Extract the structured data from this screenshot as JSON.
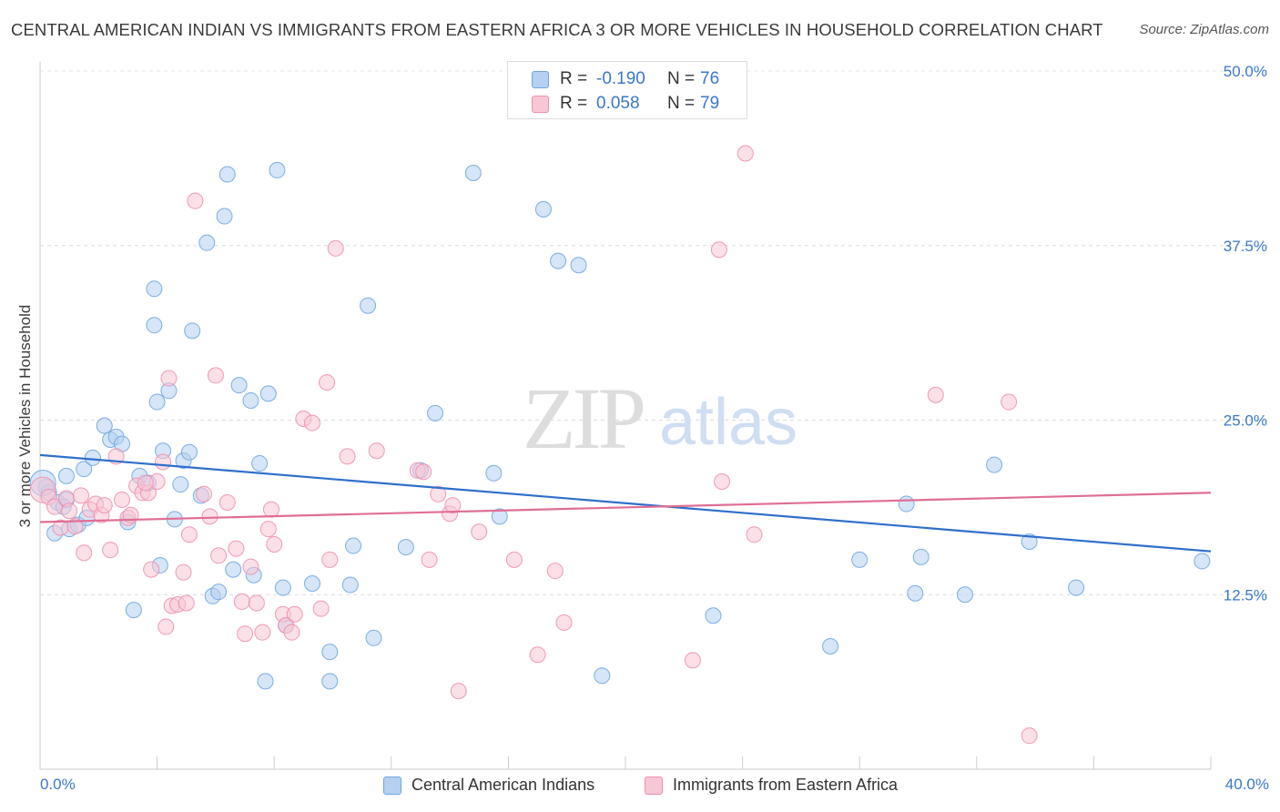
{
  "title": "CENTRAL AMERICAN INDIAN VS IMMIGRANTS FROM EASTERN AFRICA 3 OR MORE VEHICLES IN HOUSEHOLD CORRELATION CHART",
  "source": "Source: ZipAtlas.com",
  "watermark": {
    "zip": "ZIP",
    "atlas": "atlas"
  },
  "legend": {
    "rows": [
      {
        "r_label": "R =",
        "r_value": "-0.190",
        "n_label": "N =",
        "n_value": "76",
        "color": "#a8c8ef"
      },
      {
        "r_label": "R =",
        "r_value": "0.058",
        "n_label": "N =",
        "n_value": "79",
        "color": "#f6b8cb"
      }
    ]
  },
  "chart_data": {
    "type": "scatter",
    "title": "CENTRAL AMERICAN INDIAN VS IMMIGRANTS FROM EASTERN AFRICA 3 OR MORE VEHICLES IN HOUSEHOLD CORRELATION CHART",
    "xlabel": "",
    "ylabel": "3 or more Vehicles in Household",
    "xlim": [
      0,
      40
    ],
    "ylim": [
      0,
      50
    ],
    "x_tick_labels": [
      "0.0%",
      "40.0%"
    ],
    "y_ticks": [
      12.5,
      25.0,
      37.5,
      50.0
    ],
    "y_tick_labels": [
      "12.5%",
      "25.0%",
      "37.5%",
      "50.0%"
    ],
    "grid": true,
    "legend_position": "top-center",
    "series": [
      {
        "name": "Central American Indians",
        "color": "#6fa6e0",
        "fill": "#b5d0f0",
        "trend": [
          [
            0,
            22.5
          ],
          [
            40,
            15.6
          ]
        ],
        "points": [
          [
            0.2,
            20.2
          ],
          [
            0.3,
            19.8
          ],
          [
            0.5,
            16.9
          ],
          [
            0.6,
            19.1
          ],
          [
            0.8,
            18.8
          ],
          [
            0.9,
            21.0
          ],
          [
            0.9,
            19.3
          ],
          [
            1.0,
            17.2
          ],
          [
            1.3,
            17.5
          ],
          [
            1.5,
            21.5
          ],
          [
            1.6,
            18.0
          ],
          [
            1.8,
            22.3
          ],
          [
            2.2,
            24.6
          ],
          [
            2.4,
            23.6
          ],
          [
            2.6,
            23.8
          ],
          [
            2.8,
            23.3
          ],
          [
            3.0,
            17.7
          ],
          [
            3.2,
            11.4
          ],
          [
            3.4,
            21.0
          ],
          [
            3.7,
            20.5
          ],
          [
            3.9,
            34.4
          ],
          [
            3.9,
            31.8
          ],
          [
            4.0,
            26.3
          ],
          [
            4.1,
            14.6
          ],
          [
            4.2,
            22.8
          ],
          [
            4.4,
            27.1
          ],
          [
            4.6,
            17.9
          ],
          [
            4.8,
            20.4
          ],
          [
            4.9,
            22.1
          ],
          [
            5.1,
            22.7
          ],
          [
            5.2,
            31.4
          ],
          [
            5.5,
            19.6
          ],
          [
            5.7,
            37.7
          ],
          [
            5.9,
            12.4
          ],
          [
            6.1,
            12.7
          ],
          [
            6.3,
            39.6
          ],
          [
            6.4,
            42.6
          ],
          [
            6.6,
            14.3
          ],
          [
            6.8,
            27.5
          ],
          [
            7.2,
            26.4
          ],
          [
            7.3,
            13.9
          ],
          [
            7.5,
            21.9
          ],
          [
            7.7,
            6.3
          ],
          [
            7.8,
            26.9
          ],
          [
            8.1,
            42.9
          ],
          [
            8.3,
            13.0
          ],
          [
            8.4,
            10.3
          ],
          [
            9.3,
            13.3
          ],
          [
            9.9,
            6.3
          ],
          [
            9.9,
            8.4
          ],
          [
            10.6,
            13.2
          ],
          [
            10.7,
            16.0
          ],
          [
            11.2,
            33.2
          ],
          [
            11.4,
            9.4
          ],
          [
            12.5,
            15.9
          ],
          [
            13.0,
            21.4
          ],
          [
            13.5,
            25.5
          ],
          [
            14.8,
            42.7
          ],
          [
            15.5,
            21.2
          ],
          [
            15.7,
            18.1
          ],
          [
            17.2,
            40.1
          ],
          [
            17.7,
            36.4
          ],
          [
            18.4,
            36.1
          ],
          [
            19.2,
            6.7
          ],
          [
            23.0,
            11.0
          ],
          [
            27.0,
            8.8
          ],
          [
            28.0,
            15.0
          ],
          [
            29.6,
            19.0
          ],
          [
            29.9,
            12.6
          ],
          [
            30.1,
            15.2
          ],
          [
            31.6,
            12.5
          ],
          [
            32.6,
            21.8
          ],
          [
            33.8,
            16.3
          ],
          [
            35.4,
            13.0
          ],
          [
            39.7,
            14.9
          ],
          [
            0.1,
            20.5
          ]
        ]
      },
      {
        "name": "Immigrants from Eastern Africa",
        "color": "#ee8fae",
        "fill": "#f8c7d6",
        "trend": [
          [
            0,
            17.7
          ],
          [
            40,
            19.8
          ]
        ],
        "points": [
          [
            0.1,
            20.0
          ],
          [
            0.3,
            19.5
          ],
          [
            0.5,
            18.8
          ],
          [
            0.7,
            17.3
          ],
          [
            0.9,
            19.4
          ],
          [
            1.0,
            18.5
          ],
          [
            1.2,
            17.4
          ],
          [
            1.4,
            19.6
          ],
          [
            1.5,
            15.5
          ],
          [
            1.7,
            18.6
          ],
          [
            1.9,
            19.0
          ],
          [
            2.1,
            18.2
          ],
          [
            2.2,
            18.9
          ],
          [
            2.4,
            15.7
          ],
          [
            2.6,
            22.4
          ],
          [
            2.8,
            19.3
          ],
          [
            3.0,
            18.0
          ],
          [
            3.1,
            18.2
          ],
          [
            3.3,
            20.3
          ],
          [
            3.5,
            19.8
          ],
          [
            3.7,
            19.8
          ],
          [
            3.8,
            14.3
          ],
          [
            4.0,
            20.6
          ],
          [
            4.2,
            22.0
          ],
          [
            4.3,
            10.2
          ],
          [
            4.4,
            28.0
          ],
          [
            4.5,
            11.7
          ],
          [
            4.7,
            11.8
          ],
          [
            4.9,
            14.1
          ],
          [
            5.0,
            11.9
          ],
          [
            5.1,
            16.8
          ],
          [
            5.3,
            40.7
          ],
          [
            5.6,
            19.7
          ],
          [
            5.8,
            18.1
          ],
          [
            6.0,
            28.2
          ],
          [
            6.1,
            15.3
          ],
          [
            6.4,
            19.1
          ],
          [
            6.7,
            15.8
          ],
          [
            6.9,
            12.0
          ],
          [
            7.0,
            9.7
          ],
          [
            7.2,
            14.5
          ],
          [
            7.4,
            11.9
          ],
          [
            7.6,
            9.8
          ],
          [
            7.8,
            17.2
          ],
          [
            7.9,
            18.6
          ],
          [
            8.0,
            16.1
          ],
          [
            8.3,
            11.1
          ],
          [
            8.4,
            10.3
          ],
          [
            8.6,
            9.8
          ],
          [
            8.7,
            11.1
          ],
          [
            9.0,
            25.1
          ],
          [
            9.3,
            24.8
          ],
          [
            9.6,
            11.5
          ],
          [
            9.8,
            27.7
          ],
          [
            9.9,
            15.0
          ],
          [
            10.1,
            37.3
          ],
          [
            10.5,
            22.4
          ],
          [
            11.5,
            22.8
          ],
          [
            12.9,
            21.4
          ],
          [
            13.3,
            15.0
          ],
          [
            13.6,
            19.7
          ],
          [
            14.0,
            18.3
          ],
          [
            14.1,
            18.9
          ],
          [
            14.3,
            5.6
          ],
          [
            15.0,
            17.0
          ],
          [
            16.2,
            15.0
          ],
          [
            17.0,
            8.2
          ],
          [
            17.6,
            14.2
          ],
          [
            17.9,
            10.5
          ],
          [
            22.3,
            7.8
          ],
          [
            23.2,
            37.2
          ],
          [
            23.3,
            20.6
          ],
          [
            24.1,
            44.1
          ],
          [
            24.4,
            16.8
          ],
          [
            30.6,
            26.8
          ],
          [
            33.1,
            26.3
          ],
          [
            33.8,
            2.4
          ],
          [
            13.1,
            21.3
          ],
          [
            3.6,
            20.5
          ]
        ]
      }
    ]
  }
}
